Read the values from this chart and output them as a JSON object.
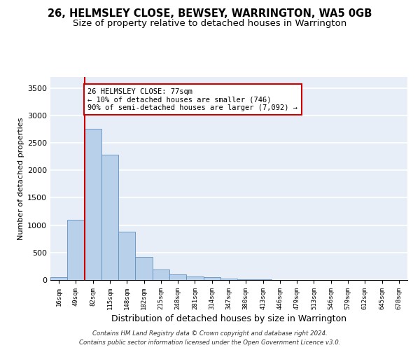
{
  "title1": "26, HELMSLEY CLOSE, BEWSEY, WARRINGTON, WA5 0GB",
  "title2": "Size of property relative to detached houses in Warrington",
  "xlabel": "Distribution of detached houses by size in Warrington",
  "ylabel": "Number of detached properties",
  "categories": [
    "16sqm",
    "49sqm",
    "82sqm",
    "115sqm",
    "148sqm",
    "182sqm",
    "215sqm",
    "248sqm",
    "281sqm",
    "314sqm",
    "347sqm",
    "380sqm",
    "413sqm",
    "446sqm",
    "479sqm",
    "513sqm",
    "546sqm",
    "579sqm",
    "612sqm",
    "645sqm",
    "678sqm"
  ],
  "values": [
    50,
    1100,
    2750,
    2280,
    880,
    420,
    190,
    105,
    65,
    50,
    25,
    18,
    8,
    4,
    2,
    1,
    0,
    0,
    0,
    0,
    0
  ],
  "bar_color": "#b8d0ea",
  "bar_edge_color": "#6090c0",
  "vline_color": "#cc0000",
  "annotation_text": "26 HELMSLEY CLOSE: 77sqm\n← 10% of detached houses are smaller (746)\n90% of semi-detached houses are larger (7,092) →",
  "annotation_box_color": "#ffffff",
  "annotation_box_edge": "#cc0000",
  "ylim": [
    0,
    3700
  ],
  "yticks": [
    0,
    500,
    1000,
    1500,
    2000,
    2500,
    3000,
    3500
  ],
  "footer1": "Contains HM Land Registry data © Crown copyright and database right 2024.",
  "footer2": "Contains public sector information licensed under the Open Government Licence v3.0.",
  "background_color": "#e8eef8",
  "title1_fontsize": 10.5,
  "title2_fontsize": 9.5
}
